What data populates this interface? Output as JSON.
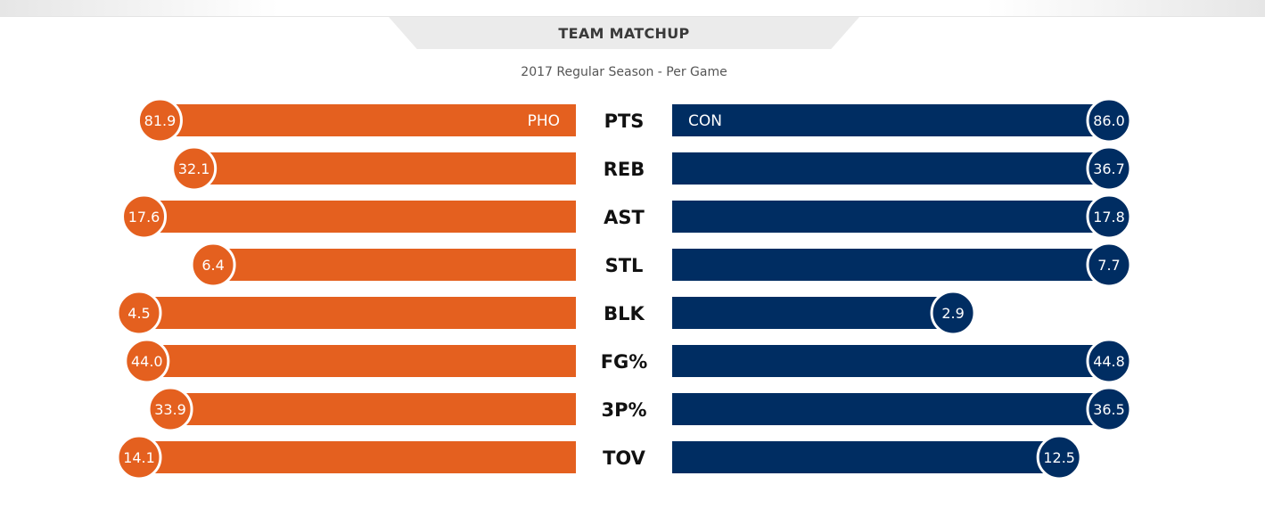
{
  "header": {
    "title": "TEAM MATCHUP",
    "subtitle": "2017 Regular Season - Per Game"
  },
  "colors": {
    "left_team": "#e4601f",
    "right_team": "#002d62",
    "label": "#111111"
  },
  "chart_data": {
    "type": "bar",
    "orientation": "diverging-horizontal",
    "categories": [
      "PTS",
      "REB",
      "AST",
      "STL",
      "BLK",
      "FG%",
      "3P%",
      "TOV"
    ],
    "series": [
      {
        "name": "PHO",
        "side": "left",
        "values": [
          81.9,
          32.1,
          17.6,
          6.4,
          4.5,
          44.0,
          33.9,
          14.1
        ]
      },
      {
        "name": "CON",
        "side": "right",
        "values": [
          86.0,
          36.7,
          17.8,
          7.7,
          2.9,
          44.8,
          36.5,
          12.5
        ]
      }
    ],
    "value_labels": {
      "left": [
        "81.9",
        "32.1",
        "17.6",
        "6.4",
        "4.5",
        "44.0",
        "33.9",
        "14.1"
      ],
      "right": [
        "86.0",
        "36.7",
        "17.8",
        "7.7",
        "2.9",
        "44.8",
        "36.5",
        "12.5"
      ]
    },
    "grid": false,
    "legend": "none"
  }
}
